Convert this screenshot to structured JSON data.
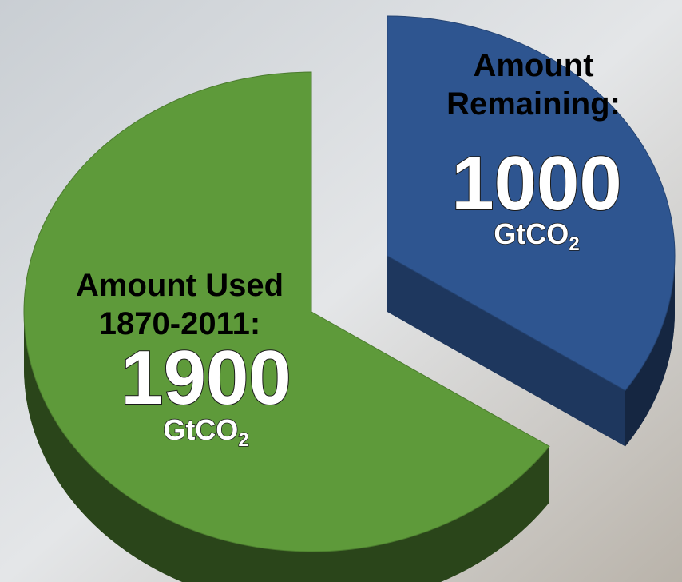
{
  "chart_data": {
    "type": "pie",
    "categories": [
      [
        "Amount Used",
        "1870-2011:"
      ],
      [
        "Amount",
        "Remaining:"
      ]
    ],
    "values": [
      1900,
      1000
    ],
    "unit": [
      "GtCO",
      "2"
    ],
    "colors": [
      "#5e9a3a",
      "#2e5590"
    ]
  }
}
